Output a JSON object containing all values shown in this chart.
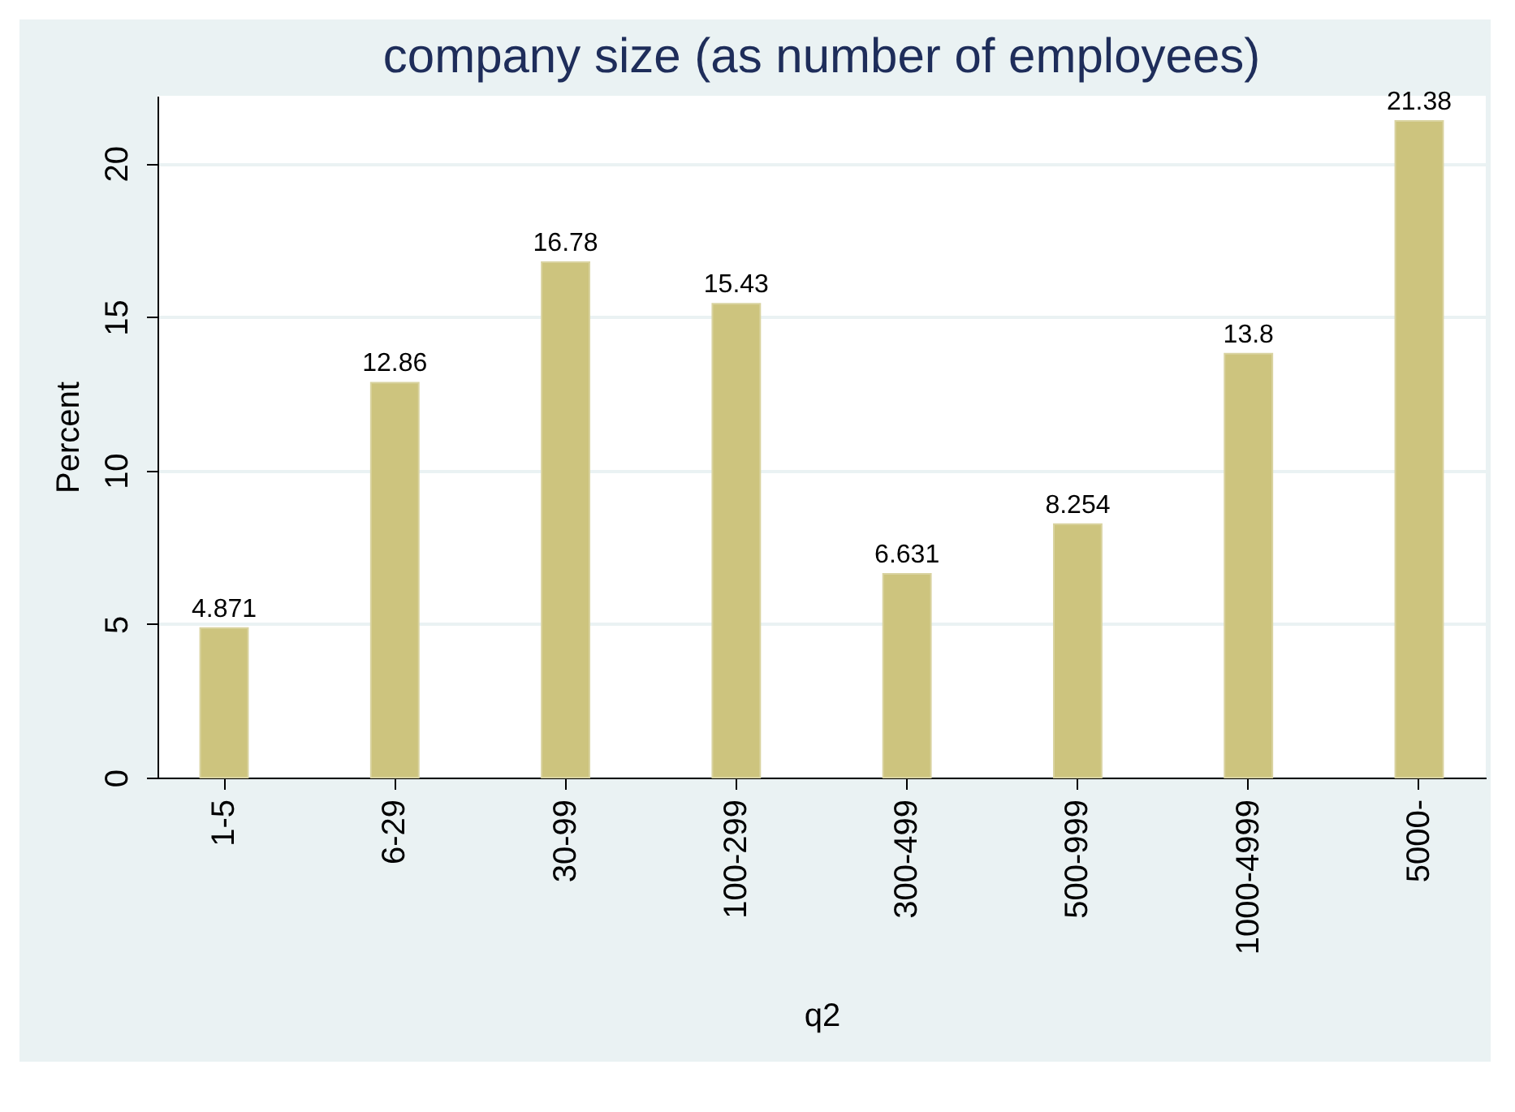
{
  "chart_data": {
    "type": "bar",
    "title": "company size (as number of employees)",
    "xlabel": "q2",
    "ylabel": "Percent",
    "categories": [
      "1-5",
      "6-29",
      "30-99",
      "100-299",
      "300-499",
      "500-999",
      "1000-4999",
      "5000-"
    ],
    "values": [
      4.871,
      12.86,
      16.78,
      15.43,
      6.631,
      8.254,
      13.8,
      21.38
    ],
    "color": "#cdc47e",
    "ylim": [
      0,
      22.2
    ],
    "yticks": [
      0,
      5,
      10,
      15,
      20
    ],
    "grid": "y",
    "data_labels": true
  }
}
